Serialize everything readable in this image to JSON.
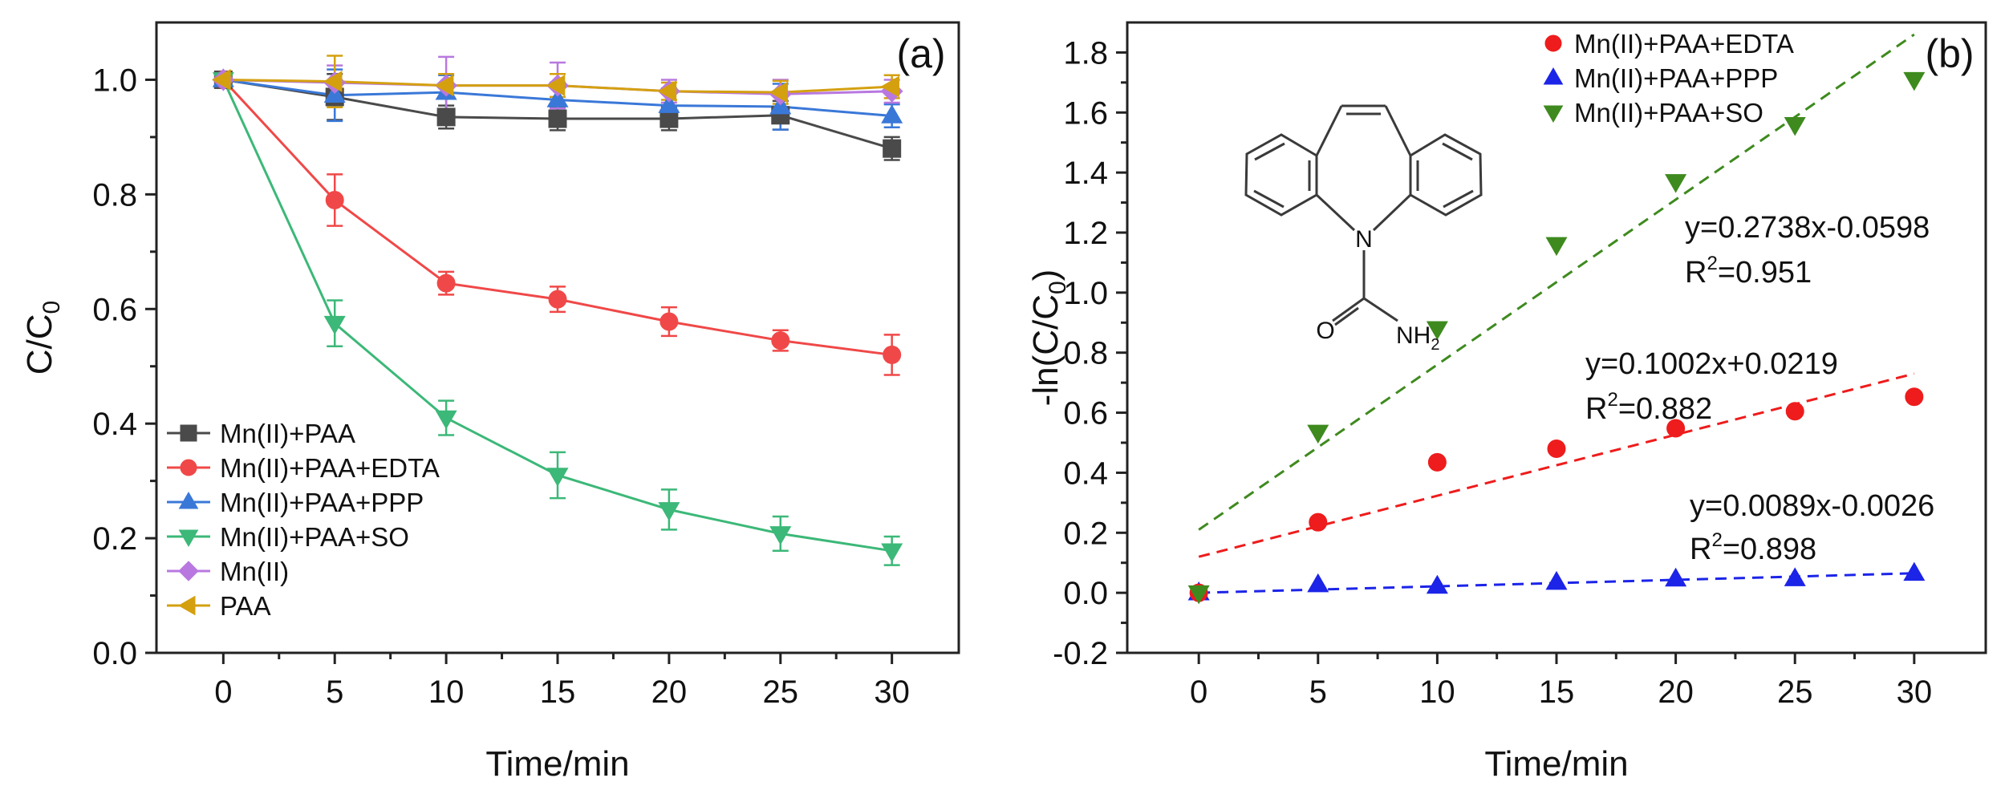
{
  "chart_data": [
    {
      "panel": "(a)",
      "type": "line",
      "xlabel": "Time/min",
      "ylabel": "C/C0",
      "ylabel_base": "C/C",
      "ylabel_sub": "0",
      "xlim": [
        -3,
        33
      ],
      "ylim": [
        0.0,
        1.1
      ],
      "xticks": [
        0,
        5,
        10,
        15,
        20,
        25,
        30
      ],
      "yticks": [
        0.0,
        0.2,
        0.4,
        0.6,
        0.8,
        1.0
      ],
      "x": [
        0,
        5,
        10,
        15,
        20,
        25,
        30
      ],
      "legend_position": "bottom-left",
      "series": [
        {
          "name": "Mn(II)+PAA",
          "color": "#4a4a4a",
          "marker": "square",
          "values": [
            1.0,
            0.97,
            0.935,
            0.932,
            0.932,
            0.938,
            0.88
          ],
          "errors": [
            0.0,
            0.04,
            0.02,
            0.02,
            0.02,
            0.025,
            0.02
          ]
        },
        {
          "name": "Mn(II)+PAA+EDTA",
          "color": "#f04848",
          "marker": "circle",
          "values": [
            1.0,
            0.79,
            0.645,
            0.617,
            0.578,
            0.545,
            0.52
          ],
          "errors": [
            0.0,
            0.045,
            0.02,
            0.022,
            0.025,
            0.018,
            0.035
          ]
        },
        {
          "name": "Mn(II)+PAA+PPP",
          "color": "#3a78d8",
          "marker": "triangle-up",
          "values": [
            1.0,
            0.973,
            0.978,
            0.965,
            0.955,
            0.953,
            0.937
          ],
          "errors": [
            0.0,
            0.045,
            0.03,
            0.03,
            0.03,
            0.04,
            0.02
          ]
        },
        {
          "name": "Mn(II)+PAA+SO",
          "color": "#3cb878",
          "marker": "triangle-down",
          "values": [
            1.0,
            0.575,
            0.41,
            0.31,
            0.25,
            0.208,
            0.178
          ],
          "errors": [
            0.0,
            0.04,
            0.03,
            0.04,
            0.035,
            0.03,
            0.025
          ]
        },
        {
          "name": "Mn(II)",
          "color": "#b878e0",
          "marker": "diamond",
          "values": [
            1.0,
            0.995,
            0.99,
            0.99,
            0.98,
            0.975,
            0.98
          ],
          "errors": [
            0.0,
            0.03,
            0.05,
            0.04,
            0.02,
            0.025,
            0.02
          ]
        },
        {
          "name": "PAA",
          "color": "#d4a010",
          "marker": "triangle-left",
          "values": [
            1.0,
            0.997,
            0.99,
            0.99,
            0.98,
            0.978,
            0.988
          ],
          "errors": [
            0.0,
            0.045,
            0.02,
            0.02,
            0.015,
            0.02,
            0.02
          ]
        }
      ]
    },
    {
      "panel": "(b)",
      "type": "scatter",
      "xlabel": "Time/min",
      "ylabel": "-ln(C/C0)",
      "ylabel_base": "-ln(C/C",
      "ylabel_sub": "0",
      "ylabel_tail": ")",
      "xlim": [
        -3,
        33
      ],
      "ylim": [
        -0.2,
        1.9
      ],
      "xticks": [
        0,
        5,
        10,
        15,
        20,
        25,
        30
      ],
      "yticks": [
        -0.2,
        0.0,
        0.2,
        0.4,
        0.6,
        0.8,
        1.0,
        1.2,
        1.4,
        1.6,
        1.8
      ],
      "x": [
        0,
        5,
        10,
        15,
        20,
        25,
        30
      ],
      "legend_position": "top-center",
      "series": [
        {
          "name": "Mn(II)+PAA+EDTA",
          "color": "#ee1c1c",
          "marker": "circle",
          "values": [
            0.0,
            0.235,
            0.435,
            0.48,
            0.548,
            0.605,
            0.653
          ],
          "fit": {
            "slope": 0.1002,
            "intercept": 0.0219,
            "line_range": [
              0.12,
              0.73
            ],
            "equation": "y=0.1002x+0.0219",
            "r2_label": "R",
            "r2_sup": "2",
            "r2_value": "=0.882"
          }
        },
        {
          "name": "Mn(II)+PAA+PPP",
          "color": "#1c24e8",
          "marker": "triangle-up",
          "values": [
            0.0,
            0.027,
            0.022,
            0.035,
            0.046,
            0.047,
            0.065
          ],
          "fit": {
            "slope": 0.0089,
            "intercept": -0.0026,
            "line_range": [
              0.0,
              0.065
            ],
            "equation": "y=0.0089x-0.0026",
            "r2_label": "R",
            "r2_sup": "2",
            "r2_value": "=0.898"
          }
        },
        {
          "name": "Mn(II)+PAA+SO",
          "color": "#3e8a1e",
          "marker": "triangle-down",
          "values": [
            0.0,
            0.535,
            0.88,
            1.16,
            1.37,
            1.56,
            1.71
          ],
          "fit": {
            "slope": 0.2738,
            "intercept": -0.0598,
            "line_range": [
              0.21,
              1.86
            ],
            "equation": "y=0.2738x-0.0598",
            "r2_label": "R",
            "r2_sup": "2",
            "r2_value": "=0.951"
          }
        }
      ],
      "inset": {
        "description": "carbamazepine structure",
        "labels": {
          "nitrogen": "N",
          "oxygen": "O",
          "amine": "NH",
          "amine_sub": "2"
        }
      }
    }
  ]
}
